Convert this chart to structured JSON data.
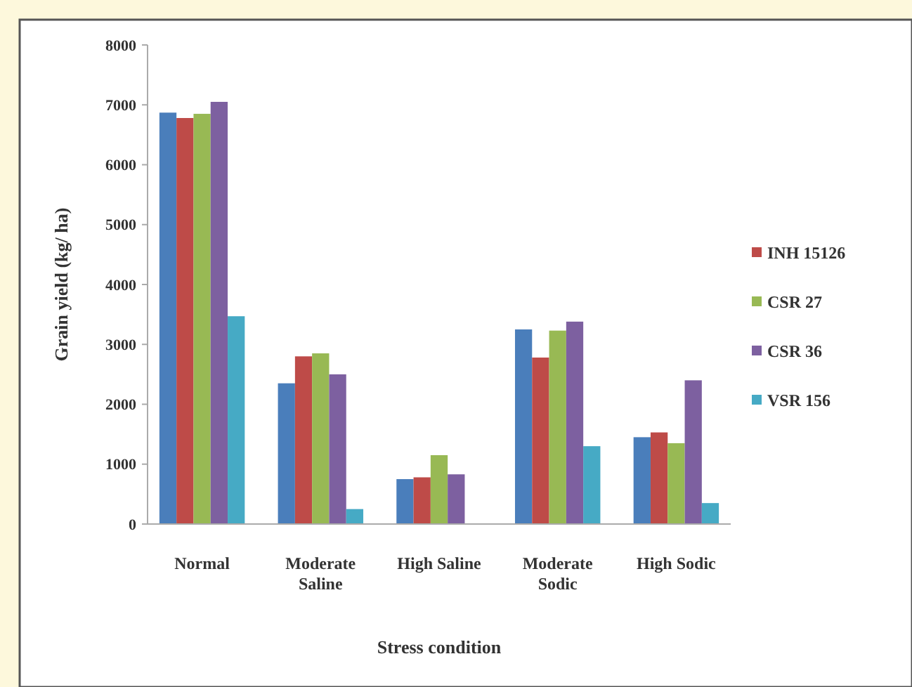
{
  "chart_data": {
    "type": "bar",
    "xlabel": "Stress condition",
    "ylabel": "Grain yield (kg/ ha)",
    "categories": [
      "Normal",
      "Moderate Saline",
      "High Saline",
      "Moderate Sodic",
      "High Sodic"
    ],
    "series": [
      {
        "color": "#4a7ebb",
        "values": [
          6870,
          2350,
          750,
          3250,
          1450
        ]
      },
      {
        "name": "INH 15126",
        "color": "#be4b48",
        "values": [
          6780,
          2800,
          780,
          2780,
          1530
        ]
      },
      {
        "name": "CSR 27",
        "color": "#98b954",
        "values": [
          6850,
          2850,
          1150,
          3230,
          1350
        ]
      },
      {
        "name": "CSR 36",
        "color": "#7d60a0",
        "values": [
          7050,
          2500,
          830,
          3380,
          2400
        ]
      },
      {
        "name": "VSR 156",
        "color": "#46aac5",
        "values": [
          3470,
          250,
          null,
          1300,
          350
        ]
      }
    ],
    "ylim": [
      0,
      8000
    ],
    "yticks": [
      0,
      1000,
      2000,
      3000,
      4000,
      5000,
      6000,
      7000,
      8000
    ],
    "legend": "right"
  }
}
